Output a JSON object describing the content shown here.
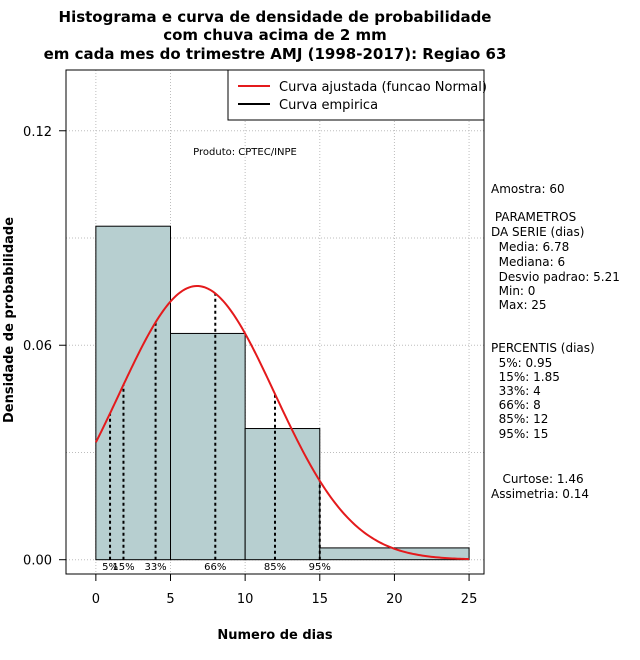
{
  "chart_data": {
    "type": "histogram",
    "title_lines": [
      "Histograma e curva de densidade de probabilidade",
      "com chuva acima de 2 mm",
      "em cada mes do trimestre AMJ (1998-2017): Regiao 63"
    ],
    "xlabel": "Numero de dias",
    "ylabel": "Densidade de probabilidade",
    "xlim": [
      -2,
      26
    ],
    "ylim": [
      -0.004,
      0.137
    ],
    "x_ticks": [
      0,
      5,
      10,
      15,
      20,
      25
    ],
    "y_ticks": [
      0.0,
      0.06,
      0.12
    ],
    "y_tick_labels": [
      "0.00",
      "0.06",
      "0.12"
    ],
    "grid": true,
    "bins": [
      {
        "from": 0,
        "to": 5,
        "density": 0.0933
      },
      {
        "from": 5,
        "to": 10,
        "density": 0.0633
      },
      {
        "from": 10,
        "to": 15,
        "density": 0.0367
      },
      {
        "from": 15,
        "to": 25,
        "density": 0.0033
      }
    ],
    "normal_fit": {
      "mean": 6.78,
      "sd": 5.21
    },
    "percentile_lines": [
      {
        "label": "5%",
        "x": 0.95
      },
      {
        "label": "15%",
        "x": 1.85
      },
      {
        "label": "33%",
        "x": 4
      },
      {
        "label": "66%",
        "x": 8
      },
      {
        "label": "85%",
        "x": 12
      },
      {
        "label": "95%",
        "x": 15
      }
    ],
    "legend": {
      "position": "top-right",
      "entries": [
        {
          "label": "Curva ajustada (funcao Normal)",
          "color": "#e41a1c"
        },
        {
          "label": "Curva empirica",
          "color": "#000000"
        }
      ]
    },
    "annotation": "Produto: CPTEC/INPE",
    "colors": {
      "bars": "#b7cfd0",
      "curve": "#e41a1c",
      "grid": "#bdbdbd"
    }
  },
  "stats_panel": {
    "sample": "Amostra: 60",
    "params_title_1": " PARAMETROS",
    "params_title_2": "DA SERIE (dias)",
    "media": "  Media: 6.78",
    "mediana": "  Mediana: 6",
    "desvio": "  Desvio padrao: 5.21",
    "min": "  Min: 0",
    "max": "  Max: 25",
    "percentis_title": "PERCENTIS (dias)",
    "p5": "  5%: 0.95",
    "p15": "  15%: 1.85",
    "p33": "  33%: 4",
    "p66": "  66%: 8",
    "p85": "  85%: 12",
    "p95": "  95%: 15",
    "curtose": "   Curtose: 1.46",
    "assimetria": "Assimetria: 0.14"
  }
}
